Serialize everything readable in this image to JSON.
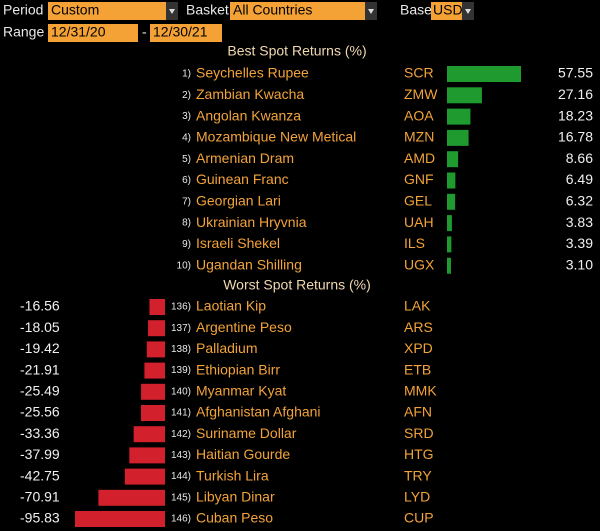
{
  "controls": {
    "period_label": "Period",
    "period": "Custom",
    "basket_label": "Basket",
    "basket": "All Countries",
    "base_label": "Base",
    "base": "USD",
    "range_label": "Range",
    "range_start": "12/31/20",
    "range_separator": "-",
    "range_end": "12/30/21"
  },
  "best": {
    "title": "Best Spot Returns (%)",
    "ranks": [
      "1)",
      "2)",
      "3)",
      "4)",
      "5)",
      "6)",
      "7)",
      "8)",
      "9)",
      "10)"
    ],
    "names": [
      "Seychelles Rupee",
      "Zambian Kwacha",
      "Angolan Kwanza",
      "Mozambique New Metical",
      "Armenian Dram",
      "Guinean Franc",
      "Georgian Lari",
      "Ukrainian Hryvnia",
      "Israeli Shekel",
      "Ugandan Shilling"
    ],
    "codes": [
      "SCR",
      "ZMW",
      "AOA",
      "MZN",
      "AMD",
      "GNF",
      "GEL",
      "UAH",
      "ILS",
      "UGX"
    ],
    "values": [
      57.55,
      27.16,
      18.23,
      16.78,
      8.66,
      6.49,
      6.32,
      3.83,
      3.39,
      3.1
    ],
    "value_labels": [
      "57.55",
      "27.16",
      "18.23",
      "16.78",
      "8.66",
      "6.49",
      "6.32",
      "3.83",
      "3.39",
      "3.10"
    ],
    "color": "#1f9a2e"
  },
  "worst": {
    "title": "Worst Spot Returns (%)",
    "ranks": [
      "136)",
      "137)",
      "138)",
      "139)",
      "140)",
      "141)",
      "142)",
      "143)",
      "144)",
      "145)",
      "146)"
    ],
    "names": [
      "Laotian Kip",
      "Argentine Peso",
      "Palladium",
      "Ethiopian Birr",
      "Myanmar Kyat",
      "Afghanistan Afghani",
      "Suriname Dollar",
      "Haitian Gourde",
      "Turkish Lira",
      "Libyan Dinar",
      "Cuban Peso"
    ],
    "codes": [
      "LAK",
      "ARS",
      "XPD",
      "ETB",
      "MMK",
      "AFN",
      "SRD",
      "HTG",
      "TRY",
      "LYD",
      "CUP"
    ],
    "values": [
      -16.56,
      -18.05,
      -19.42,
      -21.91,
      -25.49,
      -25.56,
      -33.36,
      -37.99,
      -42.75,
      -70.91,
      -95.83
    ],
    "value_labels": [
      "-16.56",
      "-18.05",
      "-19.42",
      "-21.91",
      "-25.49",
      "-25.56",
      "-33.36",
      "-37.99",
      "-42.75",
      "-70.91",
      "-95.83"
    ],
    "color": "#d2202c"
  }
}
